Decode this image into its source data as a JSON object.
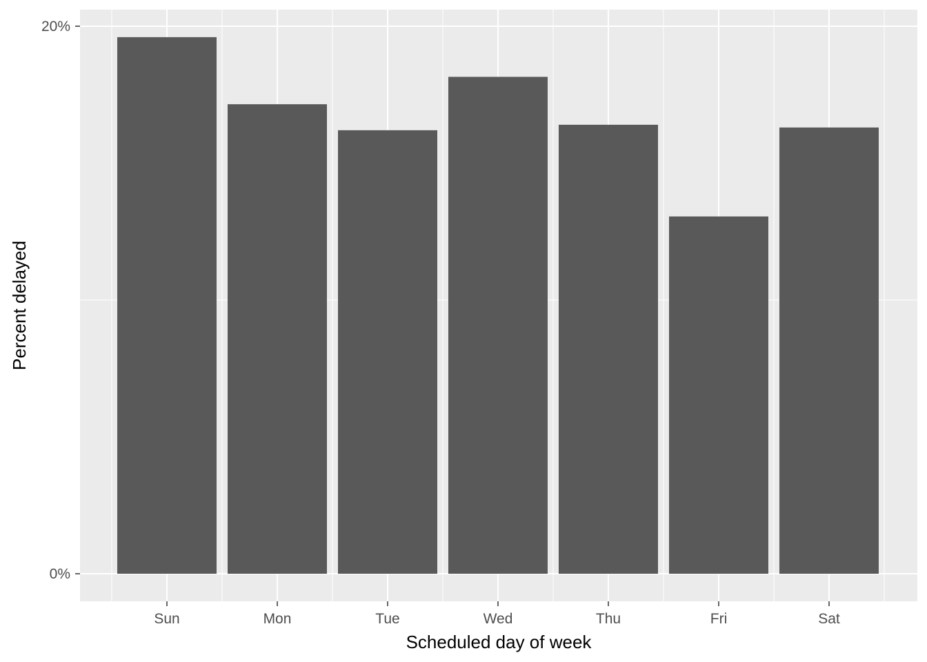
{
  "chart_data": {
    "type": "bar",
    "categories": [
      "Sun",
      "Mon",
      "Tue",
      "Wed",
      "Thu",
      "Fri",
      "Sat"
    ],
    "values": [
      19.6,
      17.15,
      16.2,
      18.15,
      16.4,
      13.05,
      16.3
    ],
    "value_unit": "percent",
    "title": "",
    "xlabel": "Scheduled day of week",
    "ylabel": "Percent delayed",
    "ylim": [
      0,
      20
    ],
    "y_ticks": [
      0,
      20
    ],
    "y_tick_labels": [
      "0%",
      "20%"
    ],
    "grid": true,
    "legend": "none",
    "colors": {
      "bar": "#595959",
      "panel": "#EBEBEB",
      "grid": "#FFFFFF",
      "tick_label": "#4D4D4D"
    }
  }
}
